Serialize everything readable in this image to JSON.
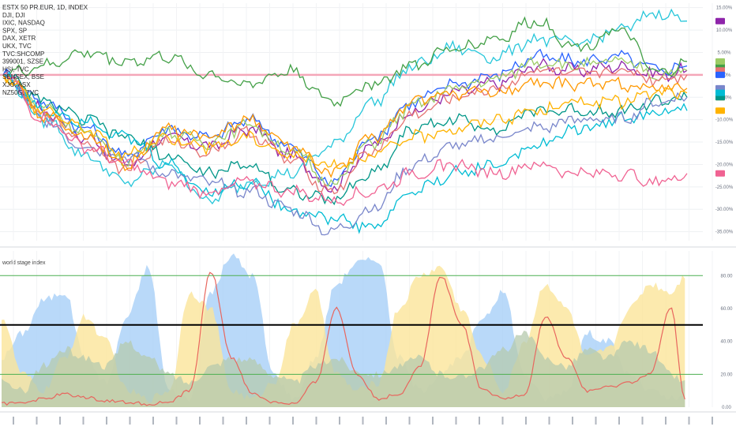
{
  "chart_data": [
    {
      "type": "line",
      "panel": "top",
      "title": "",
      "legend_position": "top-left",
      "grid": true,
      "y_ticks": [
        "15.00%",
        "10.00%",
        "5.00%",
        "0.00%",
        "-5.00%",
        "-10.00%",
        "-15.00%",
        "-20.00%",
        "-25.00%",
        "-30.00%",
        "-35.00%"
      ],
      "ylim": [
        -37,
        16
      ],
      "x": [
        0,
        6,
        12,
        18,
        24,
        30,
        36,
        42,
        48,
        54,
        60,
        66,
        72,
        78,
        84,
        90,
        96,
        100
      ],
      "reference_line": {
        "value": 0,
        "color": "#f4a6b8"
      },
      "series": [
        {
          "name": "ESTX 50 PR.EUR, 1D, INDEX",
          "color": "#8e24aa",
          "values": [
            0,
            -8,
            -14,
            -20,
            -14,
            -16,
            -12,
            -18,
            -25,
            -16,
            -8,
            -4,
            -2,
            2,
            1,
            2,
            0,
            1
          ]
        },
        {
          "name": "DJI, DJI",
          "color": "#2962ff",
          "values": [
            0,
            -6,
            -12,
            -18,
            -12,
            -14,
            -10,
            -16,
            -24,
            -14,
            -6,
            -2,
            0,
            4,
            3,
            4,
            1,
            2
          ]
        },
        {
          "name": "IXIC, NASDAQ",
          "color": "#26c6da",
          "values": [
            0,
            -10,
            -18,
            -24,
            -20,
            -28,
            -24,
            -22,
            -16,
            -6,
            2,
            6,
            4,
            8,
            7,
            10,
            14,
            12
          ]
        },
        {
          "name": "SPX, SP",
          "color": "#9ccc65",
          "values": [
            0,
            -7,
            -13,
            -19,
            -13,
            -15,
            -11,
            -17,
            -24,
            -15,
            -7,
            -3,
            -1,
            3,
            2,
            3,
            0,
            1
          ]
        },
        {
          "name": "DAX, XETR",
          "color": "#e57373",
          "values": [
            0,
            -9,
            -15,
            -21,
            -15,
            -17,
            -13,
            -19,
            -26,
            -17,
            -9,
            -5,
            -3,
            1,
            0,
            1,
            -1,
            0
          ]
        },
        {
          "name": "UKX, TVC",
          "color": "#43a047",
          "values": [
            0,
            2,
            5,
            3,
            4,
            0,
            -2,
            1,
            -6,
            -2,
            2,
            6,
            8,
            12,
            6,
            10,
            0,
            3
          ]
        },
        {
          "name": "TVC:SHCOMP",
          "color": "#009688",
          "values": [
            0,
            -6,
            -10,
            -14,
            -18,
            -22,
            -20,
            -26,
            -28,
            -22,
            -12,
            -10,
            -12,
            -8,
            -8,
            -8,
            -6,
            -5
          ]
        },
        {
          "name": "399001, SZSE",
          "color": "#00bcd4",
          "values": [
            0,
            -8,
            -10,
            -14,
            -20,
            -26,
            -24,
            -30,
            -32,
            -34,
            -26,
            -22,
            -20,
            -16,
            -12,
            -10,
            -8,
            -8
          ]
        },
        {
          "name": "HSI, TVC",
          "color": "#7986cb",
          "values": [
            0,
            -10,
            -16,
            -18,
            -22,
            -24,
            -26,
            -30,
            -35,
            -30,
            -20,
            -16,
            -14,
            -12,
            -10,
            -10,
            -6,
            -5
          ]
        },
        {
          "name": "SENSEX, BSE",
          "color": "#ff9800",
          "values": [
            0,
            -9,
            -14,
            -20,
            -12,
            -14,
            -10,
            -16,
            -22,
            -14,
            -6,
            -4,
            -4,
            -2,
            -2,
            -2,
            -3,
            -3
          ]
        },
        {
          "name": "XJO, ASX",
          "color": "#ffb300",
          "values": [
            0,
            -8,
            -12,
            -18,
            -14,
            -16,
            -14,
            -18,
            -20,
            -18,
            -14,
            -12,
            -10,
            -8,
            -6,
            -6,
            -4,
            -4
          ]
        },
        {
          "name": "NZ50G, TVC",
          "color": "#f06292",
          "values": [
            0,
            -10,
            -16,
            -20,
            -24,
            -26,
            -24,
            -26,
            -28,
            -26,
            -22,
            -20,
            -22,
            -20,
            -22,
            -22,
            -24,
            -22
          ]
        }
      ],
      "right_badges": [
        {
          "color": "#26c6da"
        },
        {
          "color": "#43a047"
        },
        {
          "color": "#8e24aa"
        },
        {
          "color": "#e57373"
        },
        {
          "color": "#2962ff"
        },
        {
          "color": "#9ccc65"
        },
        {
          "color": "#ff9800"
        },
        {
          "color": "#ffb300"
        },
        {
          "color": "#009688"
        },
        {
          "color": "#7986cb"
        },
        {
          "color": "#00bcd4"
        },
        {
          "color": "#f06292"
        }
      ]
    },
    {
      "type": "area",
      "panel": "bottom",
      "title": "world stage index",
      "legend_position": "top-left",
      "grid": true,
      "y_ticks": [
        "80.00",
        "60.00",
        "40.00",
        "20.00",
        "0.00"
      ],
      "ylim": [
        0,
        95
      ],
      "hlines": [
        {
          "value": 80,
          "color": "#4caf50"
        },
        {
          "value": 50,
          "color": "#000000"
        },
        {
          "value": 20,
          "color": "#4caf50"
        }
      ],
      "x": [
        0,
        3,
        6,
        9,
        12,
        15,
        18,
        21,
        24,
        27,
        30,
        33,
        36,
        39,
        42,
        45,
        48,
        51,
        54,
        57,
        60,
        63,
        66,
        69,
        72,
        75,
        78,
        81,
        84,
        87,
        90,
        93,
        96,
        98
      ],
      "series": [
        {
          "name": "blue",
          "color": "#a8cff7",
          "values": [
            30,
            45,
            65,
            70,
            30,
            15,
            55,
            85,
            10,
            5,
            70,
            92,
            80,
            20,
            5,
            30,
            75,
            88,
            90,
            30,
            10,
            20,
            30,
            55,
            70,
            20,
            5,
            10,
            45,
            40,
            20,
            10,
            5,
            5
          ]
        },
        {
          "name": "yellow",
          "color": "#fbe59a",
          "values": [
            55,
            20,
            10,
            30,
            55,
            40,
            10,
            5,
            10,
            70,
            60,
            10,
            5,
            15,
            50,
            70,
            20,
            10,
            15,
            60,
            80,
            85,
            60,
            30,
            10,
            40,
            75,
            60,
            30,
            35,
            60,
            75,
            70,
            80
          ]
        },
        {
          "name": "green",
          "color": "#b5c9ad",
          "values": [
            15,
            10,
            25,
            35,
            30,
            25,
            40,
            30,
            20,
            15,
            25,
            30,
            28,
            20,
            15,
            25,
            30,
            22,
            20,
            25,
            30,
            20,
            18,
            25,
            35,
            45,
            30,
            25,
            35,
            30,
            40,
            35,
            20,
            15
          ]
        },
        {
          "name": "red",
          "color": "#e8665e",
          "values": [
            2,
            3,
            5,
            8,
            6,
            4,
            3,
            2,
            3,
            10,
            82,
            30,
            8,
            3,
            2,
            15,
            60,
            20,
            5,
            8,
            25,
            80,
            50,
            10,
            5,
            8,
            55,
            30,
            10,
            12,
            15,
            20,
            60,
            5
          ]
        }
      ]
    }
  ]
}
